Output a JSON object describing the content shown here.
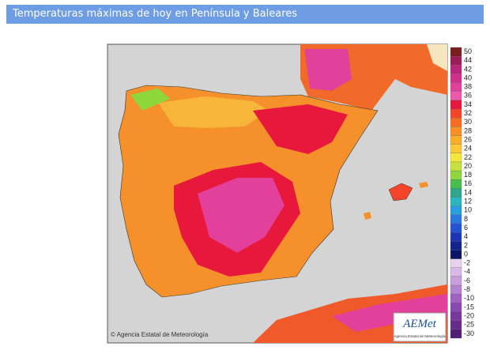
{
  "header": {
    "title": "Temperaturas máximas de hoy en Península y Baleares"
  },
  "map": {
    "copyright": "© Agencia Estatal de Meteorología",
    "logo": {
      "name": "AEMet",
      "subtitle": "Agencia Estatal de Meteorología"
    }
  },
  "legend": {
    "items": [
      {
        "label": "50",
        "color": "#7a1f1f"
      },
      {
        "label": "44",
        "color": "#9c1c5a"
      },
      {
        "label": "42",
        "color": "#bb2479"
      },
      {
        "label": "40",
        "color": "#d12f8c"
      },
      {
        "label": "38",
        "color": "#e2409b"
      },
      {
        "label": "36",
        "color": "#ee58ad"
      },
      {
        "label": "34",
        "color": "#e8183c"
      },
      {
        "label": "32",
        "color": "#f4452a"
      },
      {
        "label": "30",
        "color": "#f76b23"
      },
      {
        "label": "28",
        "color": "#fa8f23"
      },
      {
        "label": "26",
        "color": "#fcae2a"
      },
      {
        "label": "24",
        "color": "#fdc932"
      },
      {
        "label": "22",
        "color": "#f4e93a"
      },
      {
        "label": "20",
        "color": "#c8e03c"
      },
      {
        "label": "18",
        "color": "#8dd63c"
      },
      {
        "label": "16",
        "color": "#46c04a"
      },
      {
        "label": "14",
        "color": "#2ea88c"
      },
      {
        "label": "12",
        "color": "#2bb5c0"
      },
      {
        "label": "10",
        "color": "#2a9fdf"
      },
      {
        "label": "8",
        "color": "#2a78e0"
      },
      {
        "label": "6",
        "color": "#2553d4"
      },
      {
        "label": "4",
        "color": "#1f35b8"
      },
      {
        "label": "2",
        "color": "#15238f"
      },
      {
        "label": "0",
        "color": "#0a1565"
      },
      {
        "label": "-2",
        "color": "#e6d2ef"
      },
      {
        "label": "-4",
        "color": "#d7b8e6"
      },
      {
        "label": "-6",
        "color": "#c89edd"
      },
      {
        "label": "-8",
        "color": "#b582d2"
      },
      {
        "label": "-10",
        "color": "#9f62c3"
      },
      {
        "label": "-15",
        "color": "#8a48b3"
      },
      {
        "label": "-20",
        "color": "#7838a0"
      },
      {
        "label": "-25",
        "color": "#652b8d"
      },
      {
        "label": "-30",
        "color": "#521f78"
      }
    ]
  }
}
